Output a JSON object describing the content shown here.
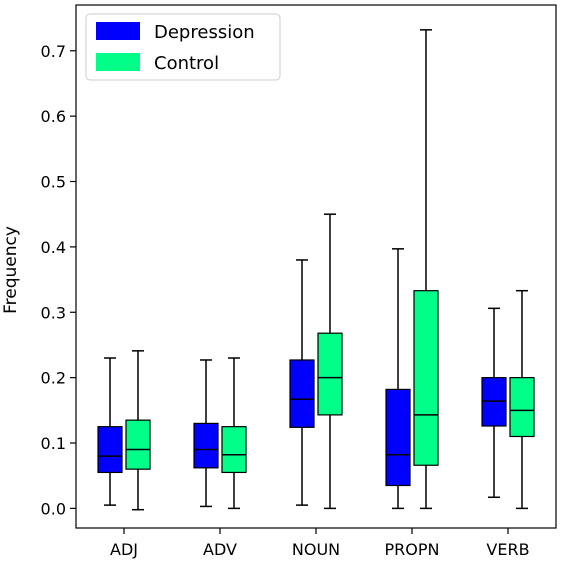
{
  "chart_data": {
    "type": "boxplot",
    "title": "",
    "xlabel": "",
    "ylabel": "Frequency",
    "ylim": [
      -0.03,
      0.77
    ],
    "yticks": [
      0.0,
      0.1,
      0.2,
      0.3,
      0.4,
      0.5,
      0.6,
      0.7
    ],
    "ytick_labels": [
      "0.0",
      "0.1",
      "0.2",
      "0.3",
      "0.4",
      "0.5",
      "0.6",
      "0.7"
    ],
    "categories": [
      "ADJ",
      "ADV",
      "NOUN",
      "PROPN",
      "VERB"
    ],
    "legend": {
      "placement": "top-left"
    },
    "series": [
      {
        "name": "Depression",
        "color": "#0000ff",
        "boxes": [
          {
            "whislo": 0.005,
            "q1": 0.055,
            "med": 0.08,
            "q3": 0.125,
            "whishi": 0.23
          },
          {
            "whislo": 0.003,
            "q1": 0.062,
            "med": 0.09,
            "q3": 0.13,
            "whishi": 0.227
          },
          {
            "whislo": 0.005,
            "q1": 0.124,
            "med": 0.167,
            "q3": 0.227,
            "whishi": 0.38
          },
          {
            "whislo": 0.0,
            "q1": 0.035,
            "med": 0.082,
            "q3": 0.182,
            "whishi": 0.397
          },
          {
            "whislo": 0.017,
            "q1": 0.126,
            "med": 0.164,
            "q3": 0.2,
            "whishi": 0.306
          }
        ]
      },
      {
        "name": "Control",
        "color": "#00ff88",
        "boxes": [
          {
            "whislo": -0.002,
            "q1": 0.06,
            "med": 0.09,
            "q3": 0.135,
            "whishi": 0.241
          },
          {
            "whislo": 0.0,
            "q1": 0.055,
            "med": 0.082,
            "q3": 0.125,
            "whishi": 0.23
          },
          {
            "whislo": 0.0,
            "q1": 0.143,
            "med": 0.2,
            "q3": 0.268,
            "whishi": 0.45
          },
          {
            "whislo": 0.0,
            "q1": 0.066,
            "med": 0.143,
            "q3": 0.333,
            "whishi": 0.732
          },
          {
            "whislo": 0.0,
            "q1": 0.11,
            "med": 0.15,
            "q3": 0.2,
            "whishi": 0.333
          }
        ]
      }
    ]
  }
}
